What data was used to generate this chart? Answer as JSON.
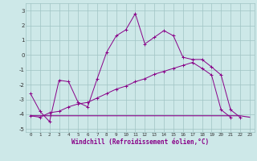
{
  "xlabel": "Windchill (Refroidissement éolien,°C)",
  "xlim": [
    -0.5,
    23.5
  ],
  "ylim": [
    -5.2,
    3.5
  ],
  "yticks": [
    -5,
    -4,
    -3,
    -2,
    -1,
    0,
    1,
    2,
    3
  ],
  "xticks": [
    0,
    1,
    2,
    3,
    4,
    5,
    6,
    7,
    8,
    9,
    10,
    11,
    12,
    13,
    14,
    15,
    16,
    17,
    18,
    19,
    20,
    21,
    22,
    23
  ],
  "background_color": "#cde8e8",
  "grid_color": "#a0c4c4",
  "line_color": "#880088",
  "line1_x": [
    0,
    1,
    2,
    3,
    4,
    5,
    6,
    7,
    8,
    9,
    10,
    11,
    12,
    13,
    14,
    15,
    16,
    17,
    18,
    19,
    20,
    21,
    22,
    23
  ],
  "line1_y": [
    -2.6,
    -3.8,
    -4.5,
    -1.7,
    -1.8,
    -3.2,
    -3.5,
    -1.6,
    0.2,
    1.3,
    1.7,
    2.8,
    0.75,
    1.2,
    1.65,
    1.3,
    -0.15,
    -0.3,
    -0.3,
    -0.8,
    -1.35,
    -3.7,
    -4.2,
    null
  ],
  "line2_x": [
    0,
    1,
    2,
    3,
    4,
    5,
    6,
    7,
    8,
    9,
    10,
    11,
    12,
    13,
    14,
    15,
    16,
    17,
    18,
    19,
    20,
    21,
    22,
    23
  ],
  "line2_y": [
    -4.1,
    -4.1,
    -4.1,
    -4.1,
    -4.1,
    -4.1,
    -4.1,
    -4.1,
    -4.1,
    -4.1,
    -4.1,
    -4.1,
    -4.1,
    -4.1,
    -4.1,
    -4.1,
    -4.1,
    -4.1,
    -4.1,
    -4.1,
    -4.1,
    -4.1,
    -4.1,
    -4.2
  ],
  "line3_x": [
    0,
    1,
    2,
    3,
    4,
    5,
    6,
    7,
    8,
    9,
    10,
    11,
    12,
    13,
    14,
    15,
    16,
    17,
    18,
    19,
    20,
    21,
    22,
    23
  ],
  "line3_y": [
    -4.1,
    -4.2,
    -3.9,
    -3.8,
    -3.5,
    -3.3,
    -3.2,
    -2.9,
    -2.6,
    -2.3,
    -2.1,
    -1.8,
    -1.6,
    -1.3,
    -1.1,
    -0.9,
    -0.7,
    -0.5,
    -0.9,
    -1.35,
    -3.7,
    -4.2,
    null,
    null
  ]
}
